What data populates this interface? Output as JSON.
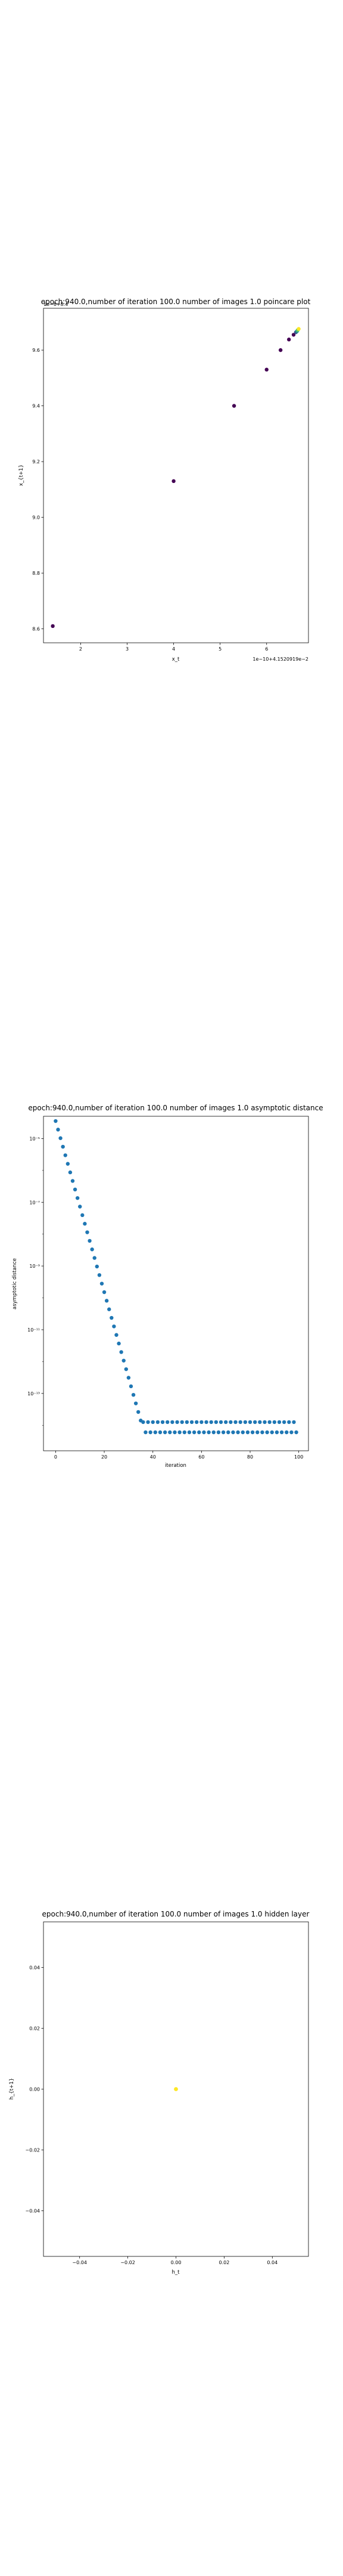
{
  "chart_data": [
    {
      "type": "scatter",
      "title": "epoch:940.0,number of iteration 100.0 number of images 1.0 poincare plot",
      "xlabel": "x_t",
      "ylabel": "x_{t+1}",
      "offset_text_top": "1e−6+8.4",
      "offset_text_bottom": "1e−10+4.1520919e−2",
      "xlim": [
        1.2,
        6.9
      ],
      "ylim": [
        8.55,
        9.75
      ],
      "xticks": [
        "2",
        "3",
        "4",
        "5",
        "6"
      ],
      "yticks": [
        "8.6",
        "8.8",
        "9.0",
        "9.2",
        "9.4",
        "9.6"
      ],
      "colormap": [
        "#440154",
        "#3b528b",
        "#21908d",
        "#5dc963",
        "#fde725"
      ],
      "points": [
        {
          "x": 1.4,
          "y": 8.61
        },
        {
          "x": 4.0,
          "y": 9.13
        },
        {
          "x": 5.3,
          "y": 9.4
        },
        {
          "x": 6.0,
          "y": 9.53
        },
        {
          "x": 6.3,
          "y": 9.6
        },
        {
          "x": 6.48,
          "y": 9.638
        },
        {
          "x": 6.58,
          "y": 9.655
        },
        {
          "x": 6.63,
          "y": 9.664
        },
        {
          "x": 6.655,
          "y": 9.668
        },
        {
          "x": 6.67,
          "y": 9.672
        },
        {
          "x": 6.69,
          "y": 9.676
        }
      ]
    },
    {
      "type": "scatter",
      "title": "epoch:940.0,number of iteration 100.0  number of images 1.0 asymptotic distance",
      "xlabel": "iteration",
      "ylabel": "asymptotic distance",
      "yscale": "log",
      "xlim": [
        -5,
        104
      ],
      "ylim_exp": [
        -14.8,
        -4.3
      ],
      "xticks": [
        0,
        20,
        40,
        60,
        80,
        100
      ],
      "yticks": [
        {
          "exp": -5,
          "label": "10⁻⁵"
        },
        {
          "exp": -7,
          "label": "10⁻⁷"
        },
        {
          "exp": -9,
          "label": "10⁻⁹"
        },
        {
          "exp": -11,
          "label": "10⁻¹¹"
        },
        {
          "exp": -13,
          "label": "10⁻¹³"
        }
      ],
      "color": "#1f77b4",
      "decay": {
        "x_start": 0,
        "x_end": 35,
        "log10_start": -4.45,
        "log10_end": -13.85
      },
      "plateau": {
        "x_start": 36,
        "x_end": 99,
        "log10_high": -13.9,
        "log10_low": -14.22
      }
    },
    {
      "type": "scatter",
      "title": "epoch:940.0,number of iteration 100.0  number of images 1.0 hidden layer",
      "xlabel": "h_t",
      "ylabel": "h_{t+1}",
      "xlim": [
        -0.055,
        0.055
      ],
      "ylim": [
        -0.055,
        0.055
      ],
      "xticks": [
        "−0.04",
        "−0.02",
        "0.00",
        "0.02",
        "0.04"
      ],
      "yticks": [
        "−0.04",
        "−0.02",
        "0.00",
        "0.02",
        "0.04"
      ],
      "points": [
        {
          "x": 0.0,
          "y": 0.0
        }
      ],
      "color": "#fde725"
    }
  ]
}
